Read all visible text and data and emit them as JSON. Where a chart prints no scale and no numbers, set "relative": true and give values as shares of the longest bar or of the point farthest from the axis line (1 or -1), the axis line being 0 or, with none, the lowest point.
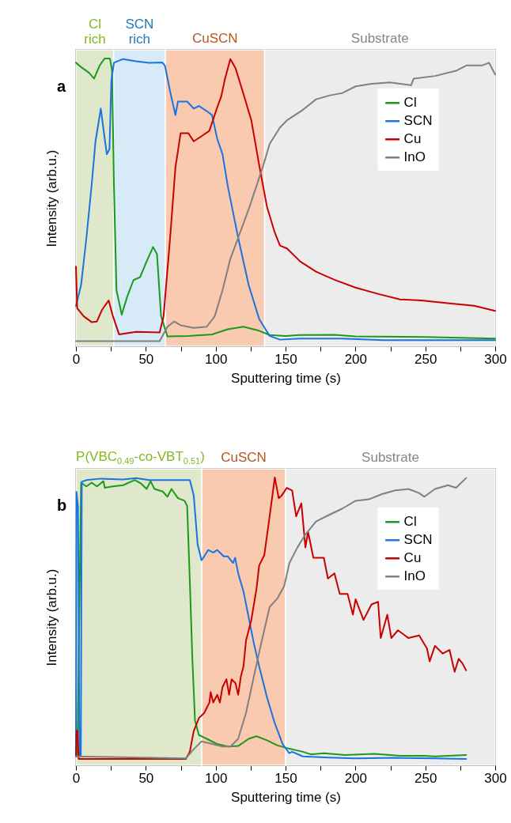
{
  "chart_data": [
    {
      "type": "line",
      "title": "a",
      "xlabel": "Sputtering time (s)",
      "ylabel": "Intensity (arb.u.)",
      "xlim": [
        0,
        300
      ],
      "xticks": [
        0,
        {
          "value": 25,
          "label": null
        },
        50,
        {
          "value": 75,
          "label": null
        },
        100,
        {
          "value": 125,
          "label": null
        },
        150,
        {
          "value": 175,
          "label": null
        },
        200,
        {
          "value": 225,
          "label": null
        },
        250,
        {
          "value": 275,
          "label": null
        },
        300
      ],
      "relative": true,
      "tick_labels": "x",
      "legend": "right",
      "line_style": "solid",
      "bands": [
        {
          "axis": "x",
          "from": 0,
          "to": 27,
          "label": "Cl rich",
          "color": "#dfe8cb"
        },
        {
          "axis": "x",
          "from": 27,
          "to": 64,
          "label": "SCN rich",
          "color": "#d6eaf8"
        },
        {
          "axis": "x",
          "from": 64,
          "to": 135,
          "label": "CuSCN",
          "color": "#f9c9b0"
        },
        {
          "axis": "x",
          "from": 135,
          "to": 300,
          "label": "Substrate",
          "color": "#ececec"
        }
      ],
      "series": [
        {
          "name": "Cl",
          "color": "#1a9a1a",
          "x": [
            0,
            3.7,
            9.4,
            13,
            16.9,
            20.6,
            24.3,
            25.8,
            27.2,
            29,
            32.8,
            36.5,
            41.2,
            45.9,
            50.6,
            55.2,
            58,
            60.9,
            65.5,
            80.5,
            97.4,
            108.6,
            119.9,
            131,
            138.6,
            150,
            160,
            185,
            200,
            250,
            300
          ],
          "values": [
            0.985,
            0.97,
            0.95,
            0.93,
            0.975,
            1.0,
            1.0,
            0.96,
            0.56,
            0.195,
            0.11,
            0.17,
            0.23,
            0.24,
            0.295,
            0.345,
            0.32,
            0.105,
            0.034,
            0.036,
            0.041,
            0.059,
            0.068,
            0.054,
            0.039,
            0.036,
            0.039,
            0.04,
            0.034,
            0.032,
            0.027
          ]
        },
        {
          "name": "SCN",
          "color": "#1874e0",
          "x": [
            0,
            3.7,
            7.5,
            11.2,
            14,
            17.8,
            20.6,
            22.1,
            24,
            25.3,
            27.2,
            33.7,
            43,
            52.4,
            61.8,
            63.7,
            67.4,
            71.2,
            73,
            79.6,
            84.3,
            88,
            93.6,
            97.4,
            101.1,
            104.9,
            108.6,
            116.1,
            123.6,
            131.1,
            138.6,
            146,
            160,
            190,
            220,
            300
          ],
          "values": [
            0.14,
            0.213,
            0.377,
            0.558,
            0.712,
            0.826,
            0.721,
            0.667,
            0.685,
            0.921,
            0.985,
            0.998,
            0.99,
            0.985,
            0.986,
            0.975,
            0.885,
            0.803,
            0.85,
            0.85,
            0.826,
            0.835,
            0.817,
            0.803,
            0.721,
            0.667,
            0.558,
            0.377,
            0.213,
            0.095,
            0.036,
            0.023,
            0.027,
            0.027,
            0.021,
            0.021
          ]
        },
        {
          "name": "Cu",
          "color": "#c80000",
          "x": [
            0,
            0.9,
            5.6,
            11.2,
            15,
            18.7,
            23.4,
            26.2,
            30.9,
            43,
            59.9,
            62.7,
            67.4,
            71.2,
            74.9,
            80.5,
            84.3,
            89.9,
            95.5,
            101.1,
            103.9,
            106.7,
            110.5,
            114.2,
            119.9,
            125.5,
            131.1,
            136.7,
            142.3,
            146,
            151,
            160.4,
            171.8,
            185,
            200,
            217,
            232,
            247,
            266,
            285,
            300
          ],
          "values": [
            0.277,
            0.132,
            0.104,
            0.084,
            0.086,
            0.127,
            0.159,
            0.109,
            0.041,
            0.05,
            0.048,
            0.104,
            0.377,
            0.622,
            0.74,
            0.74,
            0.712,
            0.73,
            0.749,
            0.83,
            0.867,
            0.93,
            0.998,
            0.966,
            0.876,
            0.785,
            0.63,
            0.485,
            0.395,
            0.35,
            0.34,
            0.295,
            0.259,
            0.231,
            0.204,
            0.181,
            0.163,
            0.159,
            0.15,
            0.141,
            0.123
          ]
        },
        {
          "name": "InO",
          "color": "#808080",
          "x": [
            0,
            59.9,
            65.5,
            70.3,
            74.9,
            84.3,
            93.6,
            99.3,
            104.9,
            110.5,
            116.1,
            123.6,
            131.1,
            134.8,
            138.6,
            146,
            151,
            162.3,
            171.8,
            181.2,
            190.7,
            200.1,
            211.5,
            224.7,
            239.8,
            241.7,
            256.9,
            272,
            279.6,
            290.9,
            295.6,
            300
          ],
          "values": [
            0.018,
            0.018,
            0.068,
            0.086,
            0.073,
            0.064,
            0.068,
            0.104,
            0.195,
            0.304,
            0.377,
            0.476,
            0.585,
            0.64,
            0.703,
            0.76,
            0.785,
            0.821,
            0.858,
            0.871,
            0.88,
            0.903,
            0.912,
            0.917,
            0.907,
            0.93,
            0.939,
            0.957,
            0.976,
            0.976,
            0.985,
            0.944
          ]
        }
      ]
    },
    {
      "type": "line",
      "title": "b",
      "xlabel": "Sputtering time (s)",
      "ylabel": "Intensity (arb.u.)",
      "xlim": [
        0,
        300
      ],
      "xticks": [
        0,
        {
          "value": 25,
          "label": null
        },
        50,
        {
          "value": 75,
          "label": null
        },
        100,
        {
          "value": 125,
          "label": null
        },
        150,
        {
          "value": 175,
          "label": null
        },
        200,
        {
          "value": 225,
          "label": null
        },
        250,
        {
          "value": 275,
          "label": null
        },
        300
      ],
      "relative": true,
      "tick_labels": "x",
      "legend": "right",
      "line_style": "solid",
      "bands": [
        {
          "axis": "x",
          "from": 0,
          "to": 90,
          "label": "P(VBC$_{0.49}$-co-VBT$_{0.51}$)",
          "color": "#dfe8cb"
        },
        {
          "axis": "x",
          "from": 90,
          "to": 150,
          "label": "CuSCN",
          "color": "#f9c9b0"
        },
        {
          "axis": "x",
          "from": 150,
          "to": 300,
          "label": "Substrate",
          "color": "#ececec"
        }
      ],
      "series": [
        {
          "name": "Cl",
          "color": "#1a9a1a",
          "x": [
            1,
            3.7,
            7.5,
            11.2,
            15,
            19.7,
            20.6,
            26.2,
            33.7,
            42.1,
            46.8,
            50.6,
            53.4,
            56.2,
            62.1,
            65.5,
            68.4,
            73,
            77.7,
            79.6,
            81.5,
            83.3,
            85.2,
            88,
            93.6,
            101.1,
            108.6,
            116.1,
            123.6,
            129.2,
            136.7,
            144.2,
            150.9,
            162.3,
            168,
            177.4,
            192.6,
            213.4,
            232.3,
            249.3,
            256.9,
            279.2
          ],
          "values": [
            0.03,
            0.982,
            0.969,
            0.982,
            0.969,
            0.987,
            0.964,
            0.969,
            0.973,
            0.991,
            0.978,
            0.96,
            0.987,
            0.96,
            0.951,
            0.933,
            0.96,
            0.928,
            0.919,
            0.901,
            0.64,
            0.371,
            0.155,
            0.105,
            0.092,
            0.074,
            0.065,
            0.067,
            0.092,
            0.101,
            0.087,
            0.069,
            0.06,
            0.047,
            0.038,
            0.042,
            0.036,
            0.04,
            0.033,
            0.033,
            0.031,
            0.036
          ]
        },
        {
          "name": "SCN",
          "color": "#1874e0",
          "x": [
            0,
            0.4,
            1.5,
            2.5,
            3.5,
            4.2,
            7.5,
            17.8,
            33.7,
            43,
            52.4,
            67.4,
            81.5,
            84.3,
            87.1,
            89.9,
            91.8,
            94.6,
            98.3,
            101.1,
            105.8,
            108.6,
            112.4,
            113.9,
            116.1,
            119.9,
            123.6,
            127.3,
            131.1,
            136.7,
            142.3,
            147.9,
            152.6,
            154.7,
            162.3,
            181.2,
            200.1,
            228.5,
            256.9,
            279.2
          ],
          "values": [
            0.03,
            0.95,
            0.9,
            0.03,
            0.03,
            0.985,
            0.991,
            0.996,
            0.993,
            0.998,
            0.991,
            0.991,
            0.991,
            0.937,
            0.766,
            0.712,
            0.726,
            0.748,
            0.739,
            0.748,
            0.726,
            0.726,
            0.703,
            0.721,
            0.667,
            0.604,
            0.514,
            0.424,
            0.344,
            0.236,
            0.146,
            0.074,
            0.042,
            0.047,
            0.031,
            0.027,
            0.024,
            0.026,
            0.024,
            0.022
          ]
        },
        {
          "name": "Cu",
          "color": "#c80000",
          "x": [
            0,
            0.5,
            1,
            2,
            78.6,
            81.5,
            84.3,
            88,
            91.8,
            95.5,
            96.4,
            98.3,
            101.1,
            103,
            104.9,
            107.7,
            109.6,
            111.4,
            114.2,
            116.1,
            118,
            119.9,
            121.7,
            125.5,
            129.2,
            131.1,
            134.8,
            138.6,
            142.3,
            145.1,
            147.2,
            150.9,
            154.7,
            157.6,
            161.3,
            164.2,
            166.1,
            169.9,
            177.4,
            180.3,
            185,
            188.8,
            194.4,
            198.2,
            200.1,
            205.8,
            211.5,
            216.2,
            218.1,
            222.8,
            225.7,
            230.4,
            238,
            245.6,
            251.2,
            253.1,
            256.9,
            262.5,
            267.3,
            271,
            273.9,
            276.7,
            279.2
          ],
          "values": [
            0.03,
            0.12,
            0.12,
            0.022,
            0.022,
            0.047,
            0.119,
            0.164,
            0.182,
            0.218,
            0.254,
            0.218,
            0.245,
            0.218,
            0.272,
            0.299,
            0.245,
            0.299,
            0.285,
            0.245,
            0.308,
            0.344,
            0.433,
            0.505,
            0.613,
            0.694,
            0.73,
            0.865,
            1.0,
            0.928,
            0.937,
            0.964,
            0.955,
            0.865,
            0.91,
            0.757,
            0.811,
            0.721,
            0.721,
            0.649,
            0.667,
            0.595,
            0.595,
            0.523,
            0.577,
            0.505,
            0.559,
            0.568,
            0.442,
            0.523,
            0.442,
            0.469,
            0.442,
            0.451,
            0.406,
            0.361,
            0.415,
            0.388,
            0.401,
            0.325,
            0.37,
            0.353,
            0.33
          ]
        },
        {
          "name": "InO",
          "color": "#808080",
          "x": [
            0,
            78.6,
            84.3,
            89.9,
            97.4,
            104.9,
            110.5,
            116.1,
            121.7,
            127.3,
            133,
            138.6,
            144.2,
            149,
            152.8,
            158.5,
            164.2,
            171.8,
            181.2,
            190.7,
            200.1,
            209.6,
            219,
            228.5,
            238,
            245.5,
            249.3,
            256.9,
            266.3,
            272,
            279.2
          ],
          "values": [
            0.031,
            0.024,
            0.056,
            0.083,
            0.074,
            0.065,
            0.065,
            0.092,
            0.182,
            0.308,
            0.433,
            0.55,
            0.58,
            0.622,
            0.703,
            0.757,
            0.802,
            0.847,
            0.87,
            0.892,
            0.919,
            0.924,
            0.942,
            0.955,
            0.96,
            0.946,
            0.933,
            0.96,
            0.973,
            0.964,
            0.998
          ]
        }
      ]
    }
  ]
}
